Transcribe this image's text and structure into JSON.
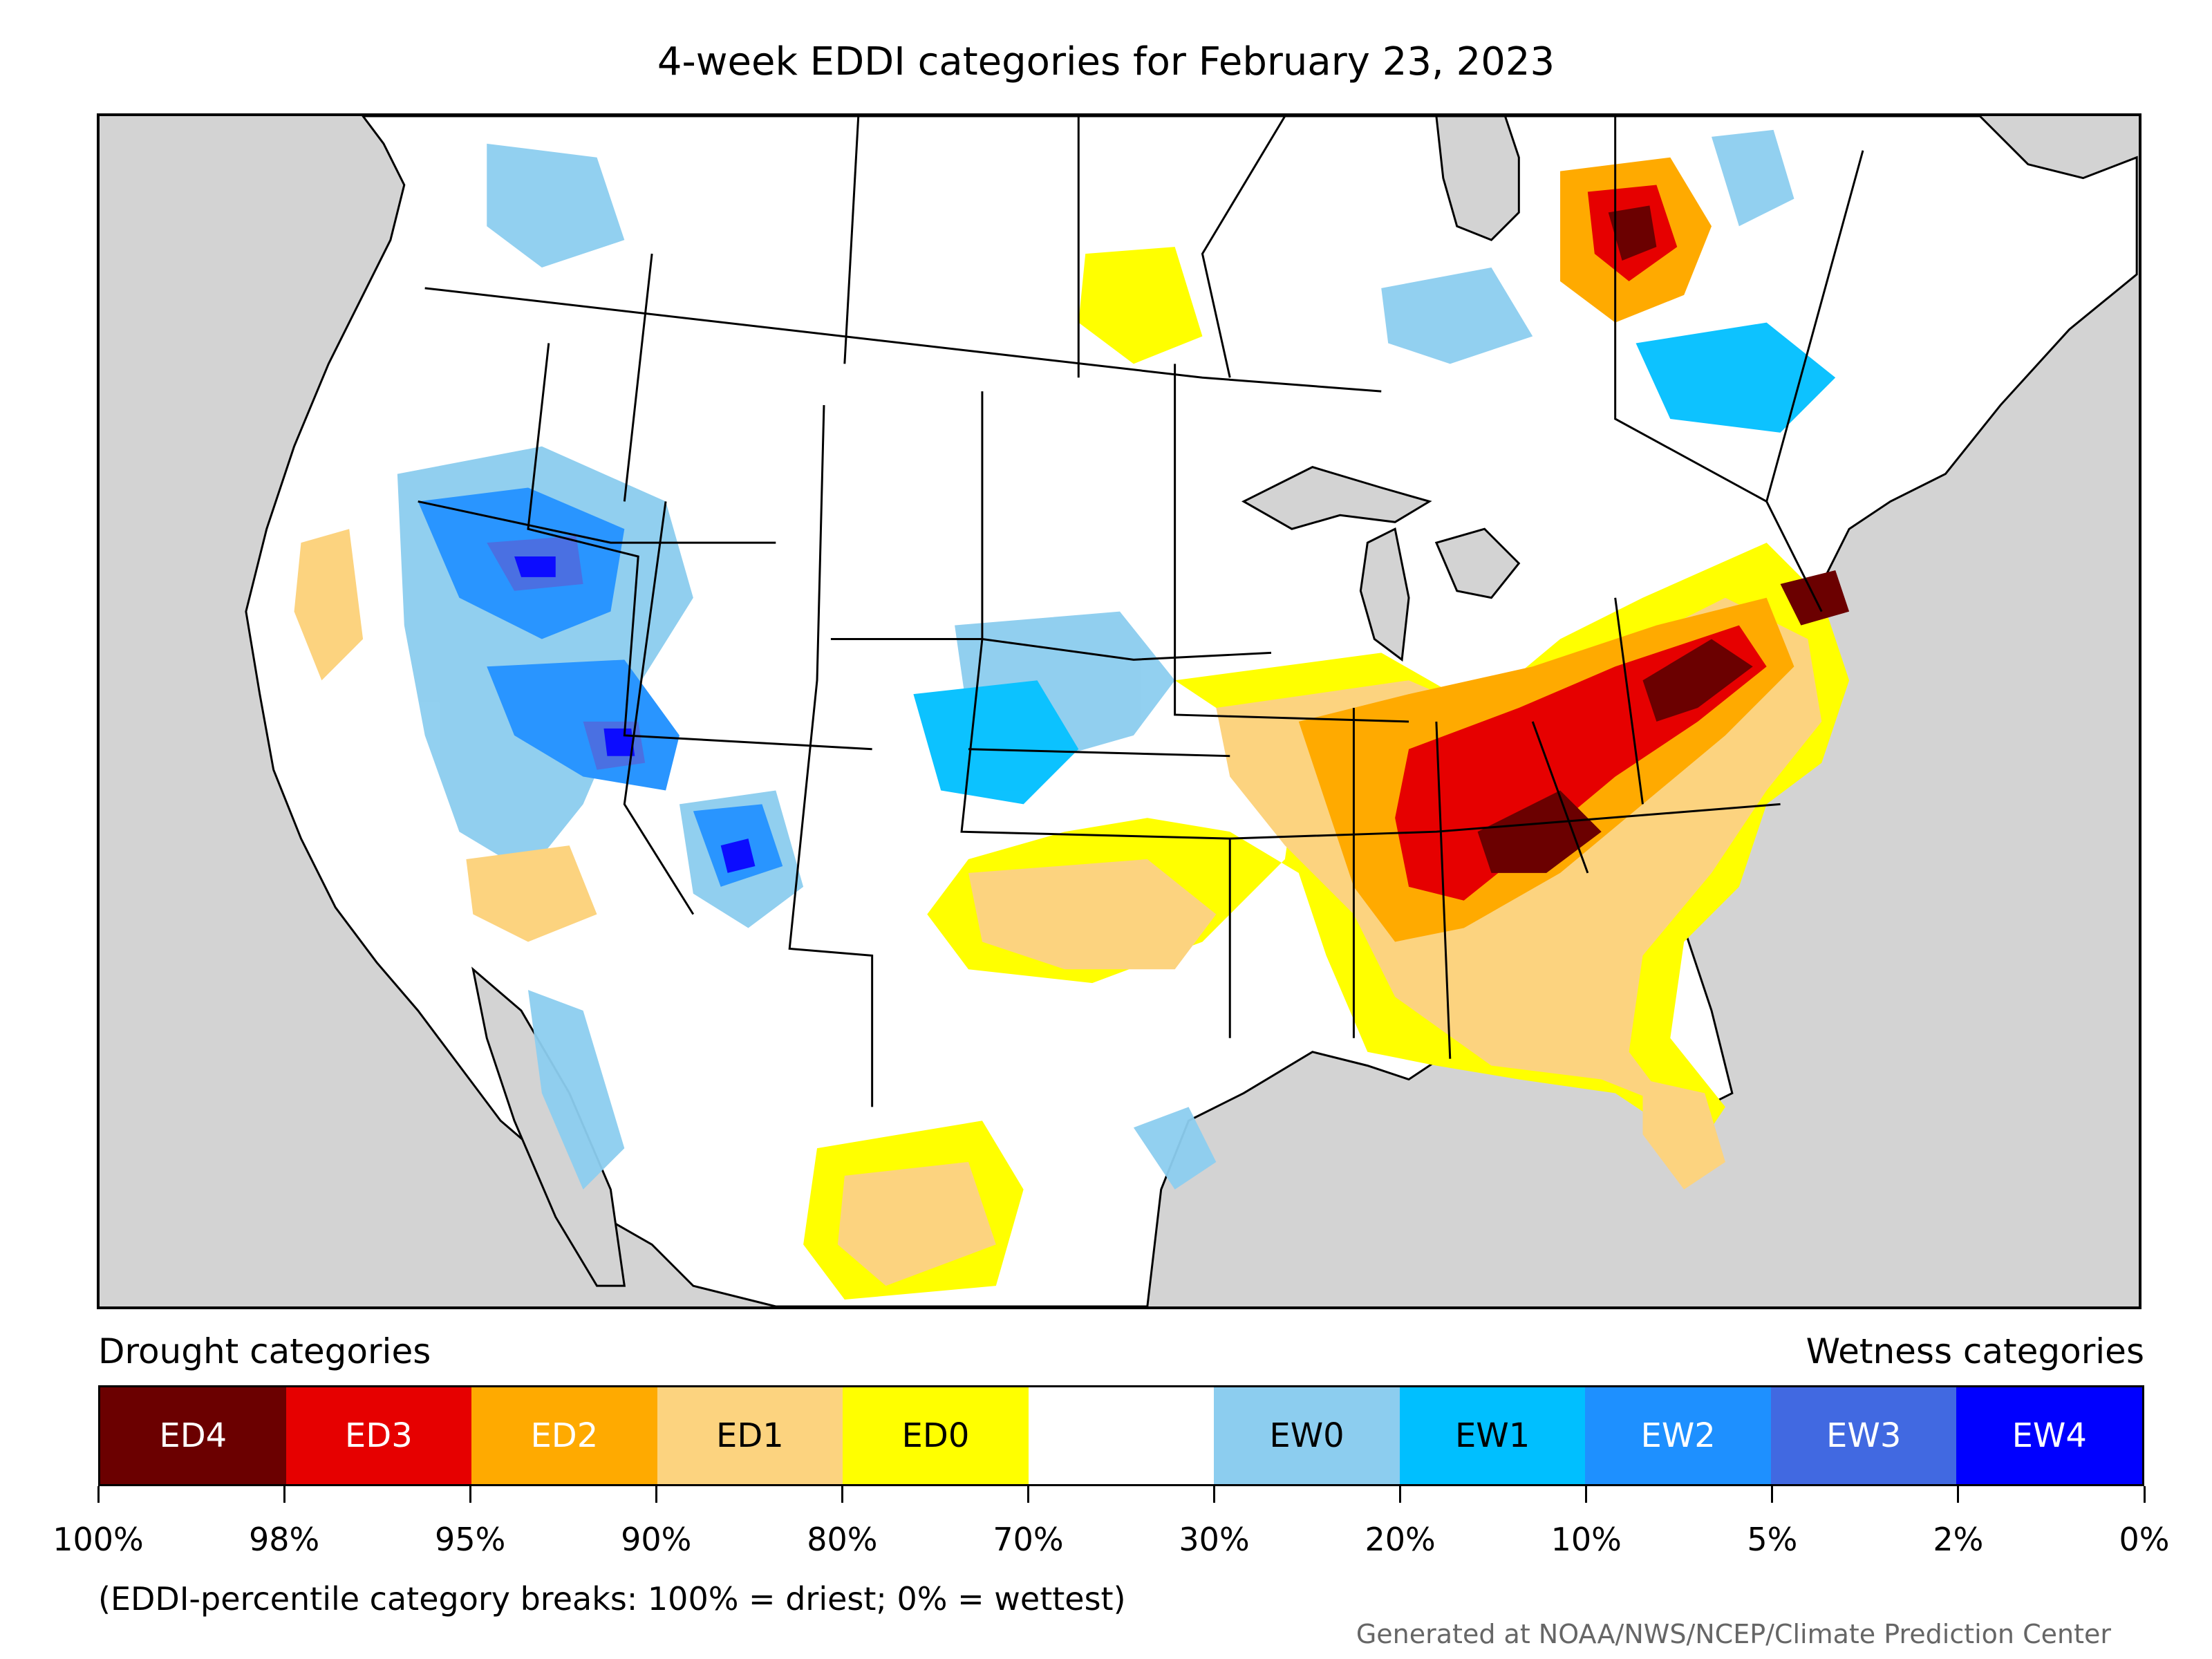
{
  "title": "4-week EDDI categories for February 23, 2023",
  "legend": {
    "drought_heading": "Drought categories",
    "wetness_heading": "Wetness categories",
    "categories": [
      {
        "label": "ED4",
        "color": "#6b0000",
        "text_color": "#ffffff"
      },
      {
        "label": "ED3",
        "color": "#e60000",
        "text_color": "#ffffff"
      },
      {
        "label": "ED2",
        "color": "#ffaa00",
        "text_color": "#ffffff"
      },
      {
        "label": "ED1",
        "color": "#fcd37f",
        "text_color": "#000000"
      },
      {
        "label": "ED0",
        "color": "#ffff00",
        "text_color": "#000000"
      },
      {
        "label": "",
        "color": "#ffffff",
        "text_color": "#000000"
      },
      {
        "label": "EW0",
        "color": "#8ccdef",
        "text_color": "#000000"
      },
      {
        "label": "EW1",
        "color": "#00bfff",
        "text_color": "#000000"
      },
      {
        "label": "EW2",
        "color": "#1e90ff",
        "text_color": "#ffffff"
      },
      {
        "label": "EW3",
        "color": "#4169e1",
        "text_color": "#ffffff"
      },
      {
        "label": "EW4",
        "color": "#0000ff",
        "text_color": "#ffffff"
      }
    ],
    "tick_labels": [
      "100%",
      "98%",
      "95%",
      "90%",
      "80%",
      "70%",
      "30%",
      "20%",
      "10%",
      "5%",
      "2%",
      "0%"
    ]
  },
  "note": "(EDDI-percentile category breaks: 100% = driest; 0% = wettest)",
  "credit": "Generated at NOAA/NWS/NCEP/Climate Prediction Center",
  "map": {
    "ocean_color": "#d3d3d3",
    "land_color": "#ffffff",
    "border_color": "#000000"
  }
}
